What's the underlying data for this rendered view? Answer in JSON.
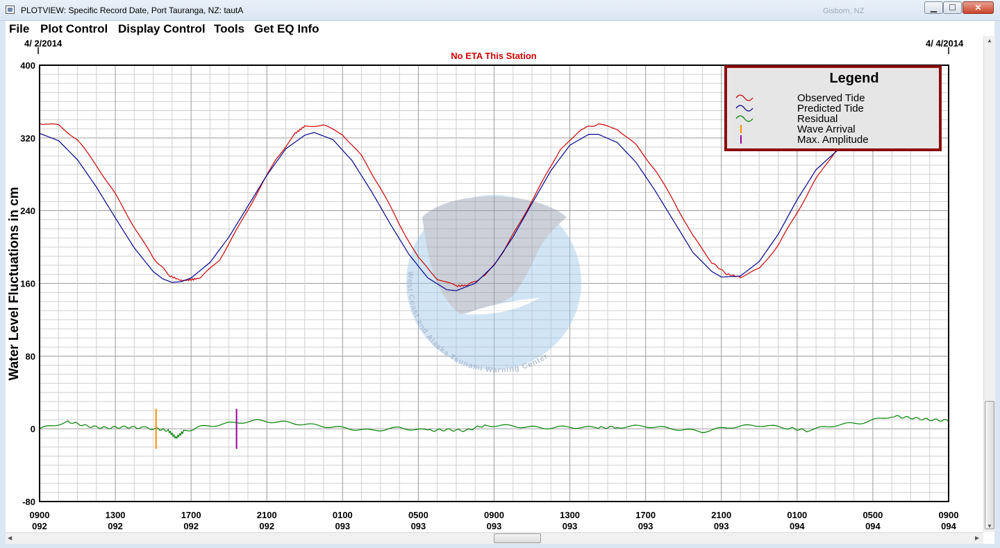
{
  "window": {
    "title": "PLOTVIEW: Specific Record Date, Port Tauranga, NZ: tautA",
    "background_hint": "Gisborn, NZ",
    "minimize": "▁",
    "maximize": "☐",
    "close": "✕"
  },
  "menu": {
    "items": [
      "File",
      "Plot Control",
      "Display Control",
      "Tools",
      "Get EQ Info"
    ]
  },
  "plot": {
    "start_date": "4/ 2/2014",
    "end_date": "4/ 4/2014",
    "eta_notice": "No ETA This Station",
    "ylabel": "Water Level Fluctuations in cm",
    "watermark_text": "West Coast and Alaska Tsunami Warning Center"
  },
  "legend": {
    "title": "Legend",
    "entries": [
      {
        "label": "Observed Tide",
        "color": "#cc0000",
        "symbol": "wave"
      },
      {
        "label": "Predicted Tide",
        "color": "#00008b",
        "symbol": "wave"
      },
      {
        "label": "Residual",
        "color": "#008000",
        "symbol": "wave"
      },
      {
        "label": "Wave Arrival",
        "color": "#ff8c00",
        "symbol": "bar"
      },
      {
        "label": "Max. Amplitude",
        "color": "#990099",
        "symbol": "bar"
      }
    ]
  },
  "chart_data": {
    "type": "line",
    "ylim": [
      -80,
      400
    ],
    "yticks": [
      -80,
      0,
      80,
      160,
      240,
      320,
      400
    ],
    "xlim_hours": [
      0,
      48
    ],
    "x_ticks": [
      {
        "time": "0900",
        "day": "092"
      },
      {
        "time": "1300",
        "day": "092"
      },
      {
        "time": "1700",
        "day": "092"
      },
      {
        "time": "2100",
        "day": "092"
      },
      {
        "time": "0100",
        "day": "093"
      },
      {
        "time": "0500",
        "day": "093"
      },
      {
        "time": "0900",
        "day": "093"
      },
      {
        "time": "1300",
        "day": "093"
      },
      {
        "time": "1700",
        "day": "093"
      },
      {
        "time": "2100",
        "day": "093"
      },
      {
        "time": "0100",
        "day": "094"
      },
      {
        "time": "0500",
        "day": "094"
      },
      {
        "time": "0900",
        "day": "094"
      }
    ],
    "grid": true,
    "legend_position": "top-right",
    "series": [
      {
        "name": "Observed Tide",
        "color": "#cc0000",
        "points": [
          [
            0,
            336
          ],
          [
            1,
            334
          ],
          [
            2,
            318
          ],
          [
            3,
            290
          ],
          [
            4,
            258
          ],
          [
            5,
            222
          ],
          [
            6,
            188
          ],
          [
            6.9,
            168
          ],
          [
            7.5,
            163
          ],
          [
            8,
            164
          ],
          [
            8.5,
            166
          ],
          [
            9.5,
            186
          ],
          [
            10.5,
            222
          ],
          [
            11.5,
            260
          ],
          [
            12.5,
            297
          ],
          [
            13.5,
            325
          ],
          [
            14,
            333
          ],
          [
            15,
            334
          ],
          [
            16,
            324
          ],
          [
            17,
            300
          ],
          [
            18,
            265
          ],
          [
            19,
            225
          ],
          [
            20,
            188
          ],
          [
            21,
            165
          ],
          [
            22,
            157
          ],
          [
            22.6,
            158
          ],
          [
            23.5,
            168
          ],
          [
            24.5,
            195
          ],
          [
            25.5,
            232
          ],
          [
            26.5,
            270
          ],
          [
            27.5,
            308
          ],
          [
            28.6,
            330
          ],
          [
            29.5,
            335
          ],
          [
            30.5,
            330
          ],
          [
            31.5,
            312
          ],
          [
            32.5,
            285
          ],
          [
            33.5,
            250
          ],
          [
            34.5,
            212
          ],
          [
            35.5,
            183
          ],
          [
            36.3,
            170
          ],
          [
            37,
            167
          ],
          [
            38,
            176
          ],
          [
            39,
            202
          ],
          [
            40,
            238
          ],
          [
            41,
            275
          ],
          [
            42,
            305
          ],
          [
            42.5,
            313
          ]
        ]
      },
      {
        "name": "Predicted Tide",
        "color": "#00008b",
        "points": [
          [
            0,
            325
          ],
          [
            1,
            317
          ],
          [
            2,
            296
          ],
          [
            3,
            266
          ],
          [
            4,
            232
          ],
          [
            5,
            199
          ],
          [
            6,
            173
          ],
          [
            6.5,
            165
          ],
          [
            7,
            161
          ],
          [
            7.5,
            162
          ],
          [
            8,
            166
          ],
          [
            9,
            183
          ],
          [
            10,
            211
          ],
          [
            11,
            245
          ],
          [
            12,
            279
          ],
          [
            13,
            308
          ],
          [
            14,
            323
          ],
          [
            14.5,
            326
          ],
          [
            15.5,
            318
          ],
          [
            16.5,
            295
          ],
          [
            17.5,
            262
          ],
          [
            18.5,
            226
          ],
          [
            19.5,
            192
          ],
          [
            20.5,
            166
          ],
          [
            21.5,
            153
          ],
          [
            22,
            152
          ],
          [
            23,
            160
          ],
          [
            24,
            180
          ],
          [
            25,
            211
          ],
          [
            26,
            248
          ],
          [
            27,
            284
          ],
          [
            28,
            312
          ],
          [
            29,
            324
          ],
          [
            29.5,
            324
          ],
          [
            30.5,
            315
          ],
          [
            31.5,
            293
          ],
          [
            32.5,
            262
          ],
          [
            33.5,
            228
          ],
          [
            34.5,
            194
          ],
          [
            35.5,
            173
          ],
          [
            36,
            167
          ],
          [
            37,
            168
          ],
          [
            38,
            184
          ],
          [
            39,
            214
          ],
          [
            40,
            252
          ],
          [
            41,
            285
          ],
          [
            42,
            304
          ],
          [
            42.5,
            312
          ]
        ]
      },
      {
        "name": "Residual",
        "color": "#008000",
        "points": [
          [
            0,
            0
          ],
          [
            1.5,
            8
          ],
          [
            2.5,
            3
          ],
          [
            3.5,
            1
          ],
          [
            4.5,
            2
          ],
          [
            5.5,
            1
          ],
          [
            6.2,
            0
          ],
          [
            6.8,
            -2
          ],
          [
            7.2,
            -10
          ],
          [
            7.6,
            -3
          ],
          [
            8.5,
            2
          ],
          [
            10,
            6
          ],
          [
            11.5,
            9
          ],
          [
            13,
            7
          ],
          [
            14.5,
            4
          ],
          [
            16,
            1
          ],
          [
            17.5,
            -2
          ],
          [
            19,
            1
          ],
          [
            20.5,
            -2
          ],
          [
            21.5,
            -1
          ],
          [
            22.5,
            -2
          ],
          [
            23.5,
            4
          ],
          [
            25,
            3
          ],
          [
            26.5,
            1
          ],
          [
            28,
            2
          ],
          [
            29.5,
            1
          ],
          [
            30.5,
            2
          ],
          [
            32,
            3
          ],
          [
            33.5,
            0
          ],
          [
            35,
            -3
          ],
          [
            36.5,
            2
          ],
          [
            38,
            4
          ],
          [
            39.5,
            1
          ],
          [
            40.5,
            -2
          ],
          [
            42,
            4
          ],
          [
            43.5,
            7
          ],
          [
            45,
            14
          ],
          [
            46,
            12
          ],
          [
            47,
            10
          ],
          [
            48,
            9
          ],
          [
            49,
            6
          ],
          [
            50,
            3
          ]
        ]
      }
    ],
    "markers": [
      {
        "name": "Wave Arrival",
        "x_hours": 6.15,
        "color": "#ff8c00"
      },
      {
        "name": "Max. Amplitude",
        "x_hours": 10.4,
        "color": "#990099"
      }
    ]
  }
}
